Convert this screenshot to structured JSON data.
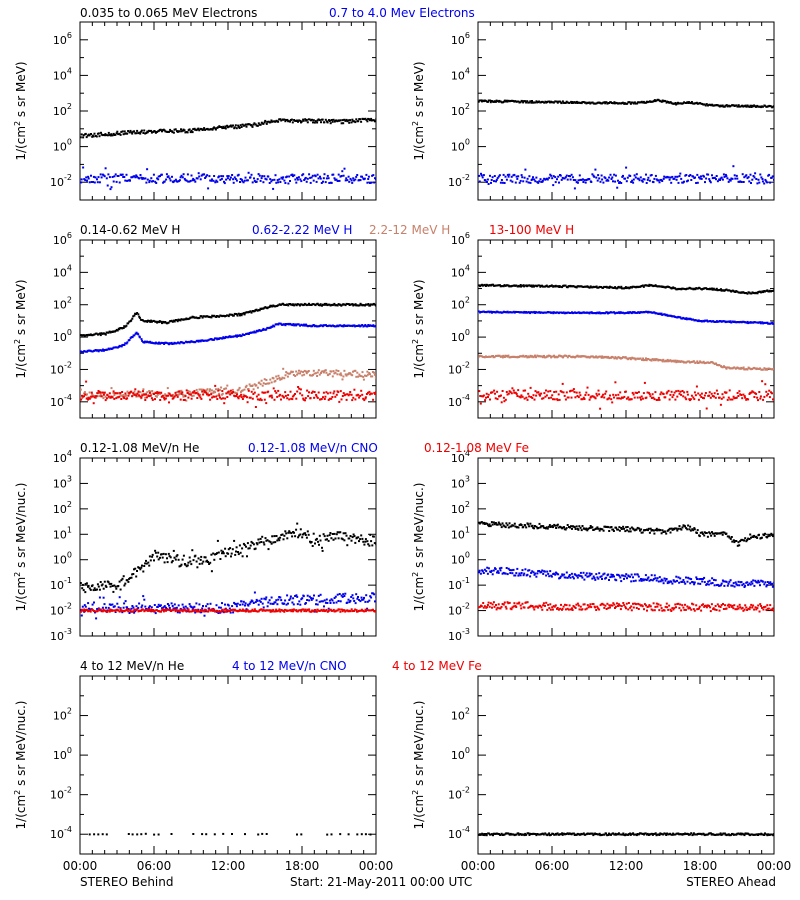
{
  "colors": {
    "black": "#000000",
    "blue": "#0000ee",
    "brown": "#c8806a",
    "red": "#ee0000",
    "axis": "#000000"
  },
  "x_ticks": [
    "00:00",
    "06:00",
    "12:00",
    "18:00",
    "00:00"
  ],
  "footer": {
    "left": "STEREO Behind",
    "center": "Start: 21-May-2011 00:00 UTC",
    "right": "STEREO Ahead"
  },
  "legends": [
    [
      {
        "text": "0.035 to 0.065 MeV Electrons",
        "color": "black"
      },
      {
        "text": "0.7 to 4.0 Mev Electrons",
        "color": "blue"
      }
    ],
    [
      {
        "text": "0.14-0.62 MeV H",
        "color": "black"
      },
      {
        "text": "0.62-2.22 MeV H",
        "color": "blue"
      },
      {
        "text": "2.2-12 MeV H",
        "color": "brown"
      },
      {
        "text": "13-100 MeV H",
        "color": "red"
      }
    ],
    [
      {
        "text": "0.12-1.08 MeV/n He",
        "color": "black"
      },
      {
        "text": "0.12-1.08 MeV/n CNO",
        "color": "blue"
      },
      {
        "text": "0.12-1.08 MeV Fe",
        "color": "red"
      }
    ],
    [
      {
        "text": "4 to 12 MeV/n He",
        "color": "black"
      },
      {
        "text": "4 to 12 MeV/n CNO",
        "color": "blue"
      },
      {
        "text": "4 to 12 MeV Fe",
        "color": "red"
      }
    ]
  ],
  "chart_data": [
    {
      "type": "scatter",
      "row": 0,
      "spacecraft": "STEREO Behind",
      "ylabel": "1/(cm2 s sr MeV)",
      "log_y": true,
      "ylim_exp": [
        -3,
        7
      ],
      "tick_exps": [
        -2,
        0,
        2,
        4,
        6
      ],
      "xlim_hours": [
        0,
        24
      ],
      "series": [
        {
          "name": "0.035 to 0.065 MeV Electrons",
          "color": "black",
          "points": [
            [
              0,
              0.6
            ],
            [
              3,
              0.75
            ],
            [
              6,
              0.85
            ],
            [
              9,
              0.9
            ],
            [
              12,
              1.1
            ],
            [
              14,
              1.2
            ],
            [
              15.5,
              1.45
            ],
            [
              18,
              1.45
            ],
            [
              21,
              1.4
            ],
            [
              24,
              1.5
            ]
          ],
          "scatter": 0.1
        },
        {
          "name": "0.7 to 4.0 Mev Electrons",
          "color": "blue",
          "points": [
            [
              0,
              -1.8
            ],
            [
              24,
              -1.8
            ]
          ],
          "scatter": 0.25
        }
      ]
    },
    {
      "type": "scatter",
      "row": 0,
      "spacecraft": "STEREO Ahead",
      "ylabel": "1/(cm2 s sr MeV)",
      "log_y": true,
      "ylim_exp": [
        -3,
        7
      ],
      "tick_exps": [
        -2,
        0,
        2,
        4,
        6
      ],
      "xlim_hours": [
        0,
        24
      ],
      "series": [
        {
          "name": "0.035 to 0.065 MeV Electrons",
          "color": "black",
          "points": [
            [
              0,
              2.55
            ],
            [
              6,
              2.5
            ],
            [
              10,
              2.45
            ],
            [
              13,
              2.45
            ],
            [
              14.5,
              2.6
            ],
            [
              16,
              2.4
            ],
            [
              17,
              2.5
            ],
            [
              19,
              2.3
            ],
            [
              24,
              2.25
            ]
          ],
          "scatter": 0.05
        },
        {
          "name": "0.7 to 4.0 Mev Electrons",
          "color": "blue",
          "points": [
            [
              0,
              -1.8
            ],
            [
              24,
              -1.8
            ]
          ],
          "scatter": 0.25
        }
      ]
    },
    {
      "type": "scatter",
      "row": 1,
      "spacecraft": "STEREO Behind",
      "ylabel": "1/(cm2 s sr MeV)",
      "log_y": true,
      "ylim_exp": [
        -5,
        6
      ],
      "tick_exps": [
        -4,
        -2,
        0,
        2,
        4,
        6
      ],
      "xlim_hours": [
        0,
        24
      ],
      "series": [
        {
          "name": "0.14-0.62 MeV H",
          "color": "black",
          "points": [
            [
              0,
              0.1
            ],
            [
              2,
              0.2
            ],
            [
              3.5,
              0.6
            ],
            [
              4,
              1.0
            ],
            [
              4.5,
              1.5
            ],
            [
              5,
              1.0
            ],
            [
              7,
              0.9
            ],
            [
              9,
              1.2
            ],
            [
              11,
              1.3
            ],
            [
              13,
              1.4
            ],
            [
              15,
              1.8
            ],
            [
              16,
              2.0
            ],
            [
              19,
              2.0
            ],
            [
              24,
              2.0
            ]
          ],
          "scatter": 0.06
        },
        {
          "name": "0.62-2.22 MeV H",
          "color": "blue",
          "points": [
            [
              0,
              -0.9
            ],
            [
              2,
              -0.8
            ],
            [
              3.5,
              -0.5
            ],
            [
              4,
              -0.1
            ],
            [
              4.5,
              0.3
            ],
            [
              5,
              -0.3
            ],
            [
              7,
              -0.4
            ],
            [
              9,
              -0.3
            ],
            [
              11,
              -0.1
            ],
            [
              13,
              0.1
            ],
            [
              15,
              0.5
            ],
            [
              16,
              0.8
            ],
            [
              19,
              0.7
            ],
            [
              24,
              0.7
            ]
          ],
          "scatter": 0.05
        },
        {
          "name": "2.2-12 MeV H",
          "color": "brown",
          "points": [
            [
              0,
              -3.6
            ],
            [
              8,
              -3.5
            ],
            [
              13,
              -3.3
            ],
            [
              16,
              -2.5
            ],
            [
              17,
              -2.2
            ],
            [
              24,
              -2.3
            ]
          ],
          "scatter": 0.2
        },
        {
          "name": "13-100 MeV H",
          "color": "red",
          "points": [
            [
              0,
              -3.6
            ],
            [
              24,
              -3.6
            ]
          ],
          "scatter": 0.3
        }
      ]
    },
    {
      "type": "scatter",
      "row": 1,
      "spacecraft": "STEREO Ahead",
      "ylabel": "1/(cm2 s sr MeV)",
      "log_y": true,
      "ylim_exp": [
        -5,
        6
      ],
      "tick_exps": [
        -4,
        -2,
        0,
        2,
        4,
        6
      ],
      "xlim_hours": [
        0,
        24
      ],
      "series": [
        {
          "name": "0.14-0.62 MeV H",
          "color": "black",
          "points": [
            [
              0,
              3.2
            ],
            [
              6,
              3.15
            ],
            [
              12,
              3.05
            ],
            [
              14,
              3.2
            ],
            [
              16,
              3.0
            ],
            [
              18,
              3.0
            ],
            [
              20,
              2.9
            ],
            [
              22,
              2.7
            ],
            [
              24,
              2.9
            ]
          ],
          "scatter": 0.05
        },
        {
          "name": "0.62-2.22 MeV H",
          "color": "blue",
          "points": [
            [
              0,
              1.55
            ],
            [
              8,
              1.5
            ],
            [
              12,
              1.5
            ],
            [
              14,
              1.55
            ],
            [
              15.5,
              1.3
            ],
            [
              18,
              1.0
            ],
            [
              22,
              0.9
            ],
            [
              24,
              0.85
            ]
          ],
          "scatter": 0.04
        },
        {
          "name": "2.2-12 MeV H",
          "color": "brown",
          "points": [
            [
              0,
              -1.2
            ],
            [
              8,
              -1.2
            ],
            [
              12,
              -1.3
            ],
            [
              14,
              -1.4
            ],
            [
              16,
              -1.5
            ],
            [
              19,
              -1.6
            ],
            [
              20,
              -1.9
            ],
            [
              24,
              -2.0
            ]
          ],
          "scatter": 0.06
        },
        {
          "name": "13-100 MeV H",
          "color": "red",
          "points": [
            [
              0,
              -3.6
            ],
            [
              24,
              -3.6
            ]
          ],
          "scatter": 0.3
        }
      ]
    },
    {
      "type": "scatter",
      "row": 2,
      "spacecraft": "STEREO Behind",
      "ylabel": "1/(cm2 s sr MeV/nuc.)",
      "log_y": true,
      "ylim_exp": [
        -3,
        4
      ],
      "tick_exps": [
        -3,
        -2,
        -1,
        0,
        1,
        2,
        3,
        4
      ],
      "xlim_hours": [
        0,
        24
      ],
      "series": [
        {
          "name": "0.12-1.08 MeV/n He",
          "color": "black",
          "points": [
            [
              0,
              -1.1
            ],
            [
              3,
              -1.0
            ],
            [
              5,
              -0.3
            ],
            [
              6,
              0.2
            ],
            [
              8,
              -0.1
            ],
            [
              10,
              0.0
            ],
            [
              12,
              0.3
            ],
            [
              14,
              0.6
            ],
            [
              16,
              0.9
            ],
            [
              17.5,
              1.1
            ],
            [
              19,
              0.8
            ],
            [
              21,
              0.9
            ],
            [
              24,
              0.7
            ]
          ],
          "scatter": 0.2
        },
        {
          "name": "0.12-1.08 MeV/n CNO",
          "color": "blue",
          "points": [
            [
              0,
              -1.9
            ],
            [
              12,
              -1.9
            ],
            [
              16,
              -1.6
            ],
            [
              24,
              -1.5
            ]
          ],
          "scatter": 0.2
        },
        {
          "name": "0.12-1.08 MeV Fe",
          "color": "red",
          "points": [
            [
              0,
              -2.0
            ],
            [
              24,
              -2.0
            ]
          ],
          "scatter": 0.05
        }
      ]
    },
    {
      "type": "scatter",
      "row": 2,
      "spacecraft": "STEREO Ahead",
      "ylabel": "1/(cm2 s sr MeV/nuc.)",
      "log_y": true,
      "ylim_exp": [
        -3,
        4
      ],
      "tick_exps": [
        -3,
        -2,
        -1,
        0,
        1,
        2,
        3,
        4
      ],
      "xlim_hours": [
        0,
        24
      ],
      "series": [
        {
          "name": "0.12-1.08 MeV/n He",
          "color": "black",
          "points": [
            [
              0,
              1.4
            ],
            [
              6,
              1.3
            ],
            [
              12,
              1.2
            ],
            [
              15,
              1.1
            ],
            [
              17,
              1.3
            ],
            [
              18,
              1.0
            ],
            [
              20,
              1.0
            ],
            [
              21,
              0.6
            ],
            [
              22,
              0.9
            ],
            [
              24,
              0.95
            ]
          ],
          "scatter": 0.1
        },
        {
          "name": "0.12-1.08 MeV/n CNO",
          "color": "blue",
          "points": [
            [
              0,
              -0.4
            ],
            [
              6,
              -0.6
            ],
            [
              12,
              -0.7
            ],
            [
              16,
              -0.8
            ],
            [
              20,
              -0.9
            ],
            [
              24,
              -1.0
            ]
          ],
          "scatter": 0.15
        },
        {
          "name": "0.12-1.08 MeV Fe",
          "color": "red",
          "points": [
            [
              0,
              -1.8
            ],
            [
              24,
              -1.9
            ]
          ],
          "scatter": 0.15
        }
      ]
    },
    {
      "type": "scatter",
      "row": 3,
      "spacecraft": "STEREO Behind",
      "ylabel": "1/(cm2 s sr MeV/nuc.)",
      "log_y": true,
      "ylim_exp": [
        -5,
        4
      ],
      "tick_exps": [
        -4,
        -2,
        0,
        2
      ],
      "xlim_hours": [
        0,
        24
      ],
      "series": [
        {
          "name": "4 to 12 MeV/n He",
          "color": "black",
          "points": [
            [
              0,
              -4.0
            ],
            [
              24,
              -4.0
            ]
          ],
          "scatter": 0.02,
          "sparse": true
        }
      ]
    },
    {
      "type": "scatter",
      "row": 3,
      "spacecraft": "STEREO Ahead",
      "ylabel": "1/(cm2 s sr MeV/nuc.)",
      "log_y": true,
      "ylim_exp": [
        -5,
        4
      ],
      "tick_exps": [
        -4,
        -2,
        0,
        2
      ],
      "xlim_hours": [
        0,
        24
      ],
      "series": [
        {
          "name": "4 to 12 MeV/n He",
          "color": "black",
          "points": [
            [
              0,
              -4.0
            ],
            [
              24,
              -4.0
            ]
          ],
          "scatter": 0.05,
          "sparse": false
        }
      ]
    }
  ]
}
